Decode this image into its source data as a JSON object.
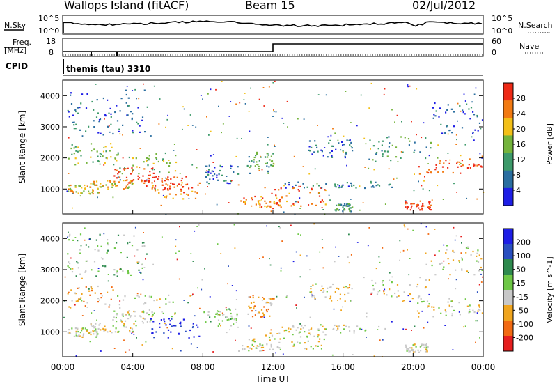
{
  "header": {
    "site": "Wallops Island (fitACF)",
    "beam": "Beam 15",
    "date": "02/Jul/2012"
  },
  "top_panels": {
    "nsky_label": "N.Sky",
    "nsearch_label": "N.Search",
    "noise_ticks_left": [
      "10^5",
      "10^0"
    ],
    "noise_ticks_right": [
      "10^5",
      "10^0"
    ],
    "freq_label": "Freq.",
    "freq_unit": "[MHz]",
    "freq_ticks": [
      "18",
      "8"
    ],
    "nave_label": "Nave",
    "nave_ticks": [
      "60",
      "0"
    ],
    "cpid_label": "CPID",
    "cpid_value": "themis (tau) 3310"
  },
  "colors": {
    "power_scale": [
      "#1e1ee6",
      "#2a6ea0",
      "#3d9a6a",
      "#74b43c",
      "#f3c018",
      "#f27a12",
      "#ee2a16"
    ],
    "velocity_scale": [
      "#e61e1e",
      "#f26a12",
      "#f0a51e",
      "#c8c8c8",
      "#6ec846",
      "#2e8a4e",
      "#2a50c0",
      "#1e1ee6"
    ],
    "ground_scatter": "#c8c8c8"
  },
  "chart_data": [
    {
      "type": "heatmap",
      "panel": "power",
      "ylabel": "Slant Range [km]",
      "yticks": [
        1000,
        2000,
        3000,
        4000
      ],
      "ylim": [
        200,
        4500
      ],
      "xlim_hours": [
        0,
        24
      ],
      "colorbar_label": "Power [dB]",
      "colorbar_ticks": [
        "28",
        "24",
        "20",
        "16",
        "12",
        "8",
        "4"
      ],
      "scatter_regions": [
        {
          "t": [
            0.2,
            2.0
          ],
          "r": [
            850,
            1150
          ],
          "level": 4
        },
        {
          "t": [
            1.5,
            4.0
          ],
          "r": [
            1000,
            1300
          ],
          "level": 4
        },
        {
          "t": [
            2.8,
            5.2
          ],
          "r": [
            1200,
            1700
          ],
          "level": 6
        },
        {
          "t": [
            4.5,
            7.2
          ],
          "r": [
            1000,
            1450
          ],
          "level": 6
        },
        {
          "t": [
            5.0,
            7.8
          ],
          "r": [
            700,
            1250
          ],
          "level": 5
        },
        {
          "t": [
            0.2,
            3.0
          ],
          "r": [
            1800,
            2500
          ],
          "level": 3
        },
        {
          "t": [
            0.2,
            4.8
          ],
          "r": [
            2800,
            4200
          ],
          "level": 1
        },
        {
          "t": [
            3.0,
            6.5
          ],
          "r": [
            1500,
            2200
          ],
          "level": 3
        },
        {
          "t": [
            10.0,
            12.5
          ],
          "r": [
            400,
            800
          ],
          "level": 5
        },
        {
          "t": [
            11.5,
            15.0
          ],
          "r": [
            450,
            1100
          ],
          "level": 5
        },
        {
          "t": [
            12.5,
            19.0
          ],
          "r": [
            1050,
            1250
          ],
          "level": 1
        },
        {
          "t": [
            10.5,
            12.0
          ],
          "r": [
            1500,
            2200
          ],
          "level": 2
        },
        {
          "t": [
            14.0,
            16.5
          ],
          "r": [
            2000,
            2600
          ],
          "level": 1
        },
        {
          "t": [
            15.5,
            16.5
          ],
          "r": [
            300,
            550
          ],
          "level": 2
        },
        {
          "t": [
            19.5,
            21.0
          ],
          "r": [
            350,
            650
          ],
          "level": 6
        },
        {
          "t": [
            17.5,
            21.0
          ],
          "r": [
            1900,
            2700
          ],
          "level": 2
        },
        {
          "t": [
            20.2,
            24.0
          ],
          "r": [
            1500,
            2100
          ],
          "level": 6
        },
        {
          "t": [
            21.0,
            24.0
          ],
          "r": [
            2800,
            3800
          ],
          "level": 1
        },
        {
          "t": [
            8.0,
            10.0
          ],
          "r": [
            1200,
            1800
          ],
          "level": 1
        }
      ]
    },
    {
      "type": "heatmap",
      "panel": "velocity",
      "ylabel": "Slant Range [km]",
      "yticks": [
        1000,
        2000,
        3000,
        4000
      ],
      "ylim": [
        200,
        4500
      ],
      "xlim_hours": [
        0,
        24
      ],
      "xticks": [
        "00:00",
        "04:00",
        "08:00",
        "12:00",
        "16:00",
        "20:00",
        "00:00"
      ],
      "xlabel": "Time UT",
      "colorbar_label": "Velocity [m s^-1]",
      "colorbar_ticks": [
        "200",
        "100",
        "50",
        "15",
        "-15",
        "-50",
        "-100",
        "-200"
      ],
      "scatter_regions": [
        {
          "t": [
            0.2,
            2.0
          ],
          "r": [
            850,
            1150
          ],
          "level": 3
        },
        {
          "t": [
            1.5,
            4.0
          ],
          "r": [
            1000,
            1300
          ],
          "level": 3
        },
        {
          "t": [
            2.8,
            5.2
          ],
          "r": [
            1200,
            1700
          ],
          "level": 3
        },
        {
          "t": [
            5.0,
            7.8
          ],
          "r": [
            800,
            1450
          ],
          "level": 7
        },
        {
          "t": [
            0.2,
            3.0
          ],
          "r": [
            1800,
            2500
          ],
          "level": 2
        },
        {
          "t": [
            0.2,
            4.8
          ],
          "r": [
            2800,
            4200
          ],
          "level": 4
        },
        {
          "t": [
            3.0,
            6.5
          ],
          "r": [
            1500,
            2200
          ],
          "level": 3
        },
        {
          "t": [
            10.0,
            12.5
          ],
          "r": [
            400,
            800
          ],
          "level": 3
        },
        {
          "t": [
            11.5,
            15.0
          ],
          "r": [
            450,
            1100
          ],
          "level": 3
        },
        {
          "t": [
            12.5,
            19.0
          ],
          "r": [
            1050,
            1250
          ],
          "level": 3
        },
        {
          "t": [
            10.5,
            12.0
          ],
          "r": [
            1500,
            2200
          ],
          "level": 2
        },
        {
          "t": [
            14.0,
            16.5
          ],
          "r": [
            2000,
            2600
          ],
          "level": 3
        },
        {
          "t": [
            19.5,
            21.0
          ],
          "r": [
            350,
            650
          ],
          "level": 3
        },
        {
          "t": [
            17.5,
            21.0
          ],
          "r": [
            1900,
            2700
          ],
          "level": 3
        },
        {
          "t": [
            20.2,
            24.0
          ],
          "r": [
            1500,
            2100
          ],
          "level": 3
        },
        {
          "t": [
            21.0,
            24.0
          ],
          "r": [
            2800,
            3800
          ],
          "level": 3
        },
        {
          "t": [
            8.0,
            10.0
          ],
          "r": [
            1200,
            1800
          ],
          "level": 4
        }
      ]
    }
  ]
}
